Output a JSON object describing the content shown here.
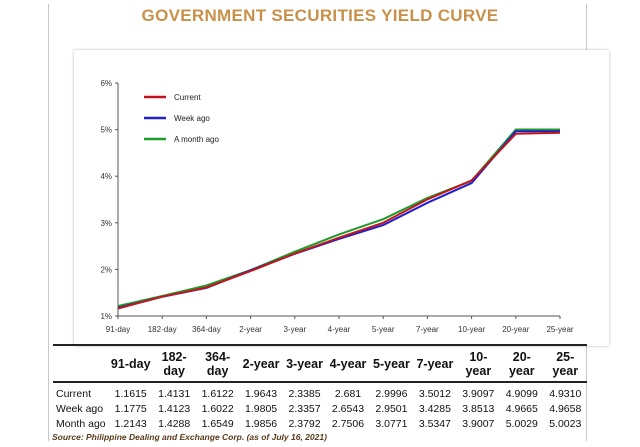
{
  "title": "GOVERNMENT SECURITIES YIELD CURVE",
  "source": "Source: Philippine Dealing and Exchange Corp. (as of July 16, 2021)",
  "colors": {
    "title": "#c8914a",
    "current": "#c2151b",
    "week_ago": "#2020cc",
    "month_ago": "#1e9c2a"
  },
  "chart_data": {
    "type": "line",
    "title": "",
    "xlabel": "",
    "ylabel": "",
    "categories": [
      "91-day",
      "182-day",
      "364-day",
      "2-year",
      "3-year",
      "4-year",
      "5-year",
      "7-year",
      "10-year",
      "20-year",
      "25-year"
    ],
    "y_ticks": [
      "1%",
      "2%",
      "3%",
      "4%",
      "5%",
      "6%"
    ],
    "ylim": [
      1,
      6
    ],
    "legend_position": "top-left",
    "grid": false,
    "series": [
      {
        "name": "Current",
        "color": "#c2151b",
        "values": [
          1.1615,
          1.4131,
          1.6122,
          1.9643,
          2.3385,
          2.681,
          2.9996,
          3.5012,
          3.9097,
          4.9099,
          4.931
        ]
      },
      {
        "name": "Week ago",
        "color": "#2020cc",
        "values": [
          1.1775,
          1.4123,
          1.6022,
          1.9805,
          2.3357,
          2.6543,
          2.9501,
          3.4285,
          3.8513,
          4.9665,
          4.9658
        ]
      },
      {
        "name": "A month ago",
        "color": "#1e9c2a",
        "values": [
          1.2143,
          1.4288,
          1.6549,
          1.9856,
          2.3792,
          2.7506,
          3.0771,
          3.5347,
          3.9007,
          5.0029,
          5.0023
        ]
      }
    ]
  },
  "table": {
    "headers": [
      "",
      "91-day",
      "182-day",
      "364-day",
      "2-year",
      "3-year",
      "4-year",
      "5-year",
      "7-year",
      "10-year",
      "20-year",
      "25-year"
    ],
    "rows": [
      {
        "label": "Current",
        "cells": [
          "1.1615",
          "1.4131",
          "1.6122",
          "1.9643",
          "2.3385",
          "2.681",
          "2.9996",
          "3.5012",
          "3.9097",
          "4.9099",
          "4.9310"
        ]
      },
      {
        "label": "Week ago",
        "cells": [
          "1.1775",
          "1.4123",
          "1.6022",
          "1.9805",
          "2.3357",
          "2.6543",
          "2.9501",
          "3.4285",
          "3.8513",
          "4.9665",
          "4.9658"
        ]
      },
      {
        "label": "Month ago",
        "cells": [
          "1.2143",
          "1.4288",
          "1.6549",
          "1.9856",
          "2.3792",
          "2.7506",
          "3.0771",
          "3.5347",
          "3.9007",
          "5.0029",
          "5.0023"
        ]
      }
    ]
  }
}
